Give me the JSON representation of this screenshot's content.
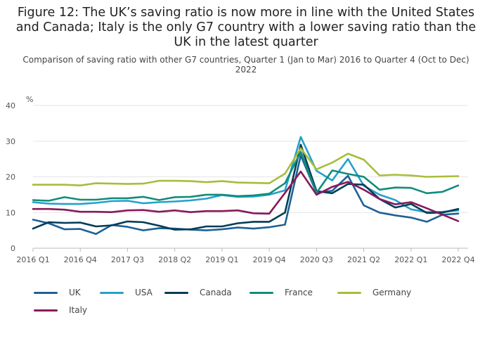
{
  "title": "Figure 12: The UK’s saving ratio is now more in line with the United States and Canada; Italy is the only G7 country with a lower saving ratio than the UK in the latest quarter",
  "subtitle": "Comparison of saving ratio with other G7 countries, Quarter 1 (Jan to Mar) 2016 to Quarter 4 (Oct to Dec) 2022",
  "chart_data": {
    "type": "line",
    "ylabel": "%",
    "ylim": [
      0,
      40
    ],
    "yticks": [
      0,
      10,
      20,
      30,
      40
    ],
    "grid": true,
    "legend_position": "bottom",
    "x": [
      "2016 Q1",
      "2016 Q2",
      "2016 Q3",
      "2016 Q4",
      "2017 Q1",
      "2017 Q2",
      "2017 Q3",
      "2017 Q4",
      "2018 Q1",
      "2018 Q2",
      "2018 Q3",
      "2018 Q4",
      "2019 Q1",
      "2019 Q2",
      "2019 Q3",
      "2019 Q4",
      "2020 Q1",
      "2020 Q2",
      "2020 Q3",
      "2020 Q4",
      "2021 Q1",
      "2021 Q2",
      "2021 Q3",
      "2021 Q4",
      "2022 Q1",
      "2022 Q2",
      "2022 Q3",
      "2022 Q4"
    ],
    "xtick_labels": [
      "2016 Q1",
      "2016 Q4",
      "2017 Q3",
      "2018 Q2",
      "2019 Q1",
      "2019 Q4",
      "2020 Q3",
      "2021 Q2",
      "2022 Q1",
      "2022 Q4"
    ],
    "xtick_indices": [
      0,
      3,
      6,
      9,
      12,
      15,
      18,
      21,
      24,
      27
    ],
    "series": [
      {
        "name": "UK",
        "color": "#206095",
        "values": [
          8.0,
          7.0,
          5.3,
          5.4,
          4.0,
          6.5,
          6.0,
          5.0,
          5.6,
          5.5,
          5.2,
          5.0,
          5.3,
          5.8,
          5.5,
          5.9,
          6.6,
          26.0,
          15.5,
          16.1,
          20.3,
          12.0,
          10.0,
          9.2,
          8.6,
          7.4,
          9.4,
          9.7
        ]
      },
      {
        "name": "USA",
        "color": "#27A0CC",
        "values": [
          12.9,
          12.5,
          12.4,
          12.4,
          12.7,
          13.2,
          13.3,
          12.6,
          12.9,
          13.1,
          13.4,
          13.9,
          14.9,
          14.4,
          14.5,
          15.0,
          16.2,
          31.2,
          21.7,
          19.0,
          25.0,
          17.5,
          15.0,
          13.5,
          10.9,
          10.1,
          10.2,
          10.6
        ]
      },
      {
        "name": "Canada",
        "color": "#003C57",
        "values": [
          5.5,
          7.3,
          7.1,
          7.2,
          6.1,
          6.4,
          7.5,
          7.3,
          6.3,
          5.2,
          5.3,
          6.1,
          6.1,
          7.0,
          7.4,
          7.4,
          10.0,
          29.0,
          16.0,
          15.4,
          18.0,
          17.8,
          13.8,
          11.4,
          12.4,
          9.9,
          10.0,
          11.0
        ]
      },
      {
        "name": "France",
        "color": "#118C7B",
        "values": [
          13.5,
          13.3,
          14.3,
          13.6,
          13.6,
          14.0,
          14.0,
          14.4,
          13.5,
          14.3,
          14.4,
          15.0,
          15.0,
          14.6,
          14.8,
          15.3,
          18.2,
          27.0,
          15.5,
          21.8,
          20.8,
          20.0,
          16.4,
          17.0,
          16.9,
          15.4,
          15.8,
          17.6
        ]
      },
      {
        "name": "Germany",
        "color": "#A8BD3A",
        "values": [
          17.8,
          17.8,
          17.8,
          17.6,
          18.2,
          18.1,
          18.0,
          18.1,
          18.9,
          18.9,
          18.8,
          18.5,
          18.8,
          18.4,
          18.3,
          18.2,
          20.9,
          28.0,
          22.1,
          24.0,
          26.5,
          24.8,
          20.4,
          20.6,
          20.4,
          20.0,
          20.1,
          20.2
        ]
      },
      {
        "name": "Italy",
        "color": "#871A5B",
        "values": [
          11.0,
          11.0,
          10.8,
          10.2,
          10.2,
          10.1,
          10.6,
          10.7,
          10.2,
          10.6,
          10.1,
          10.4,
          10.4,
          10.6,
          9.8,
          9.7,
          15.5,
          21.5,
          15.0,
          17.2,
          18.6,
          16.4,
          13.8,
          12.3,
          12.9,
          11.2,
          9.4,
          7.6
        ]
      }
    ]
  }
}
